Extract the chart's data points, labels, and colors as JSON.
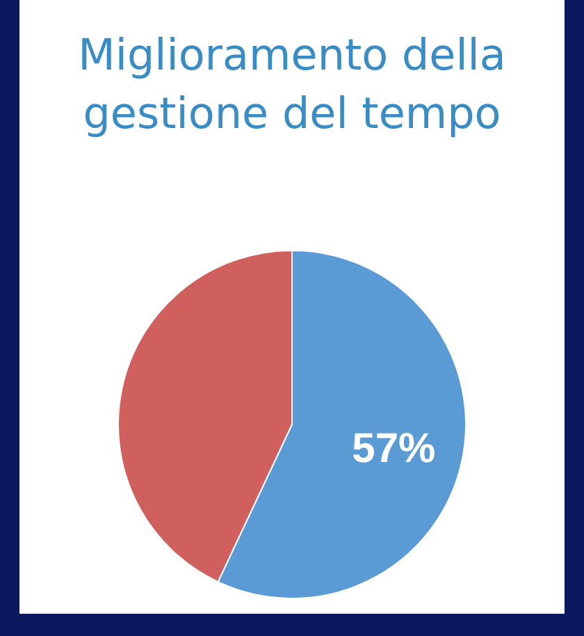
{
  "chart_data": {
    "type": "pie",
    "title": "Miglioramento della gestione del tempo",
    "categories": [
      null,
      null
    ],
    "values": [
      57,
      43
    ],
    "colors": [
      "#5b9bd5",
      "#d0605e"
    ],
    "value_labels": [
      "57%",
      null
    ]
  }
}
